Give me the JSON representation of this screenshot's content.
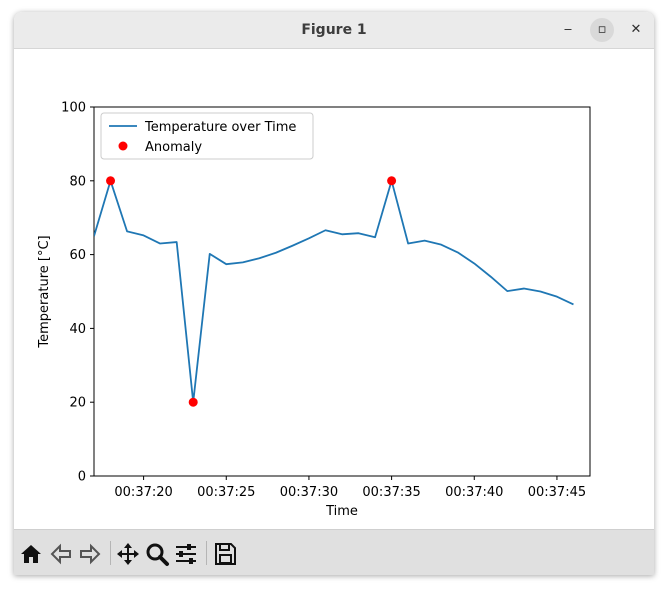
{
  "window": {
    "title": "Figure 1",
    "controls": {
      "minimize": "‒",
      "maximize": "▫",
      "close": "✕"
    }
  },
  "toolbar": {
    "buttons": [
      {
        "name": "home-icon"
      },
      {
        "name": "back-icon"
      },
      {
        "name": "forward-icon"
      },
      {
        "name": "pan-icon"
      },
      {
        "name": "zoom-icon"
      },
      {
        "name": "configure-subplots-icon"
      },
      {
        "name": "save-icon"
      }
    ]
  },
  "colors": {
    "line": "#1f77b4",
    "anomaly": "#ff0000"
  },
  "chart_data": {
    "type": "line",
    "title": "",
    "xlabel": "Time",
    "ylabel": "Temperature [°C]",
    "xlim": [
      "00:37:17",
      "00:37:47"
    ],
    "ylim": [
      0,
      100
    ],
    "grid": false,
    "legend_position": "top-left",
    "x_ticks": [
      "00:37:20",
      "00:37:25",
      "00:37:30",
      "00:37:35",
      "00:37:40",
      "00:37:45"
    ],
    "y_ticks": [
      0,
      20,
      40,
      60,
      80,
      100
    ],
    "x": [
      "00:37:17",
      "00:37:18",
      "00:37:19",
      "00:37:20",
      "00:37:21",
      "00:37:22",
      "00:37:23",
      "00:37:24",
      "00:37:25",
      "00:37:26",
      "00:37:27",
      "00:37:28",
      "00:37:29",
      "00:37:30",
      "00:37:31",
      "00:37:32",
      "00:37:33",
      "00:37:34",
      "00:37:35",
      "00:37:36",
      "00:37:37",
      "00:37:38",
      "00:37:39",
      "00:37:40",
      "00:37:41",
      "00:37:42",
      "00:37:43",
      "00:37:44",
      "00:37:45",
      "00:37:46"
    ],
    "series": [
      {
        "name": "Temperature over Time",
        "values": [
          65,
          80,
          66.3,
          65.2,
          63,
          63.4,
          20,
          60.2,
          57.4,
          57.9,
          59,
          60.5,
          62.4,
          64.4,
          66.6,
          65.5,
          65.8,
          64.7,
          80,
          63,
          63.8,
          62.7,
          60.6,
          57.6,
          54,
          50.1,
          50.8,
          50,
          48.6,
          46.5
        ]
      }
    ],
    "anomalies": {
      "name": "Anomaly",
      "x": [
        "00:37:18",
        "00:37:23",
        "00:37:35"
      ],
      "values": [
        80,
        20,
        80
      ]
    }
  }
}
